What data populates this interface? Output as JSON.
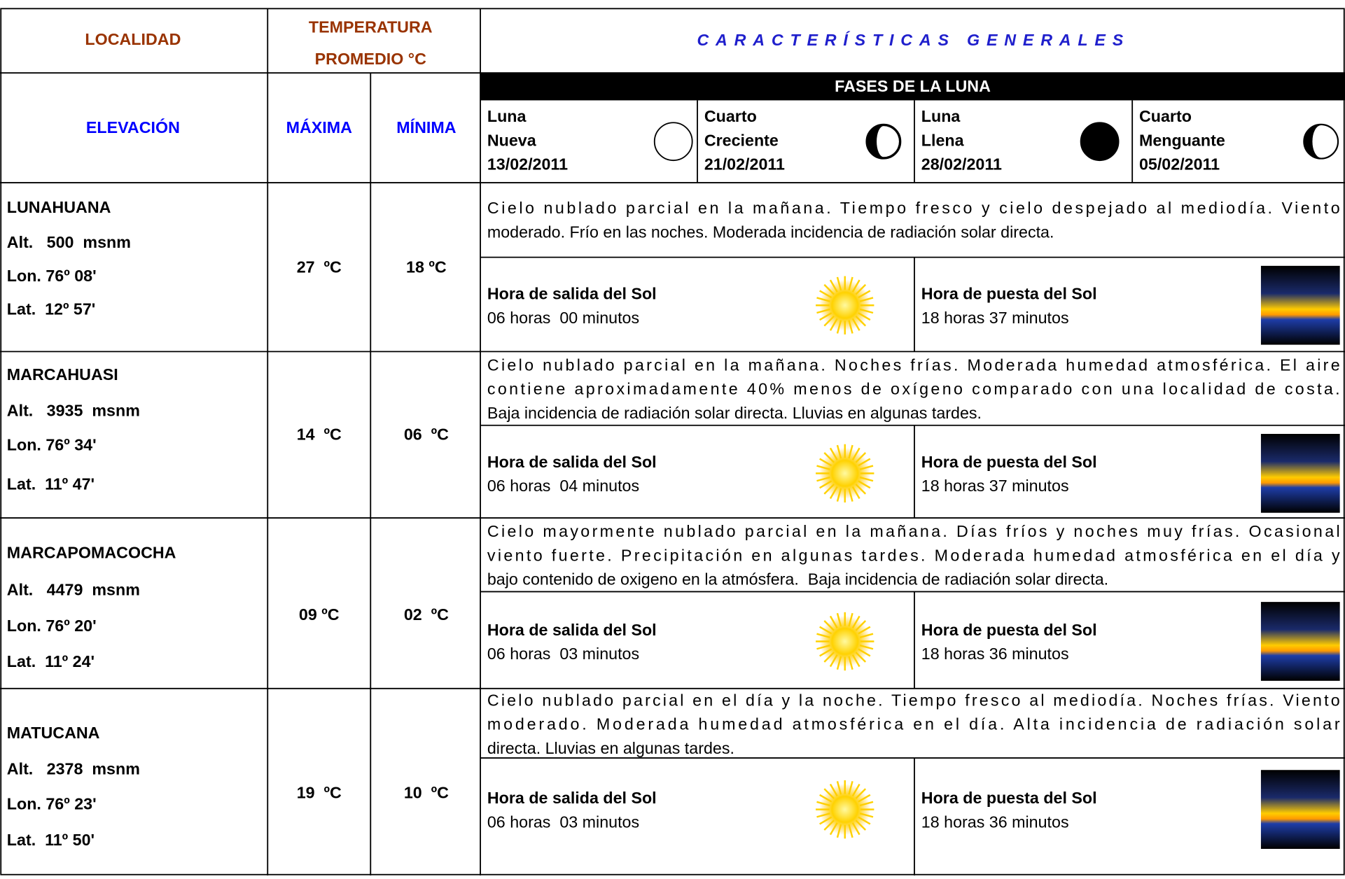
{
  "header": {
    "localidad": "LOCALIDAD",
    "temperatura": [
      "TEMPERATURA",
      "PROMEDIO °C"
    ],
    "caracteristicas": "CARACTERÍSTICAS GENERALES",
    "elevacion": "ELEVACIÓN",
    "maxima": "MÁXIMA",
    "minima": "MÍNIMA",
    "fases": "FASES DE LA LUNA"
  },
  "fases": [
    {
      "name": [
        "Luna",
        "Nueva"
      ],
      "date": "13/02/2011"
    },
    {
      "name": [
        "Cuarto",
        "Creciente"
      ],
      "date": "21/02/2011"
    },
    {
      "name": [
        "Luna",
        "Llena"
      ],
      "date": "28/02/2011"
    },
    {
      "name": [
        "Cuarto",
        "Menguante"
      ],
      "date": "05/02/2011"
    }
  ],
  "rows": [
    {
      "localidad": "LUNAHUANA",
      "alt": "Alt.   500  msnm",
      "lon": "Lon. 76º 08'",
      "lat": "Lat.  12º 57'",
      "max": "27  ºC",
      "min": "18 ºC",
      "description": [
        "Cielo nublado parcial en la mañana. Tiempo fresco y cielo despejado al mediodía. Viento",
        "moderado. Frío en las noches. Moderada incidencia de radiación solar directa."
      ],
      "salida_label": "Hora de salida del Sol",
      "salida": "06 horas  00 minutos",
      "puesta_label": "Hora de puesta del Sol",
      "puesta": "18 horas 37 minutos"
    },
    {
      "localidad": "MARCAHUASI",
      "alt": "Alt.   3935  msnm",
      "lon": "Lon. 76º 34'",
      "lat": "Lat.  11º 47'",
      "max": "14  ºC",
      "min": "06  ºC",
      "description": [
        "Cielo nublado parcial en la mañana. Noches frías. Moderada humedad atmosférica. El aire",
        "contiene aproximadamente 40% menos de oxígeno comparado con una localidad de costa.",
        "Baja incidencia de radiación solar directa. Lluvias en algunas tardes."
      ],
      "salida_label": "Hora de salida del Sol",
      "salida": "06 horas  04 minutos",
      "puesta_label": "Hora de puesta del Sol",
      "puesta": "18 horas 37 minutos"
    },
    {
      "localidad": "MARCAPOMACOCHA",
      "alt": "Alt.   4479  msnm",
      "lon": "Lon. 76º 20'",
      "lat": "Lat.  11º 24'",
      "max": "09 ºC",
      "min": "02  ºC",
      "description": [
        "Cielo mayormente nublado parcial en la mañana. Días fríos y noches muy frías. Ocasional",
        "viento fuerte. Precipitación en algunas tardes. Moderada humedad atmosférica en el día y",
        "bajo contenido de oxigeno en la atmósfera.  Baja incidencia de radiación solar directa."
      ],
      "salida_label": "Hora de salida del Sol",
      "salida": "06 horas  03 minutos",
      "puesta_label": "Hora de puesta del Sol",
      "puesta": "18 horas 36 minutos"
    },
    {
      "localidad": "MATUCANA",
      "alt": "Alt.   2378  msnm",
      "lon": "Lon. 76º 23'",
      "lat": "Lat.  11º 50'",
      "max": "19  ºC",
      "min": "10  ºC",
      "description": [
        "Cielo nublado parcial en el día y la noche. Tiempo fresco al mediodía. Noches frías. Viento",
        "moderado. Moderada humedad atmosférica en el día. Alta incidencia de radiación solar",
        "directa. Lluvias en algunas tardes."
      ],
      "salida_label": "Hora de salida del Sol",
      "salida": "06 horas  03 minutos",
      "puesta_label": "Hora de puesta del Sol",
      "puesta": "18 horas 36 minutos"
    }
  ]
}
